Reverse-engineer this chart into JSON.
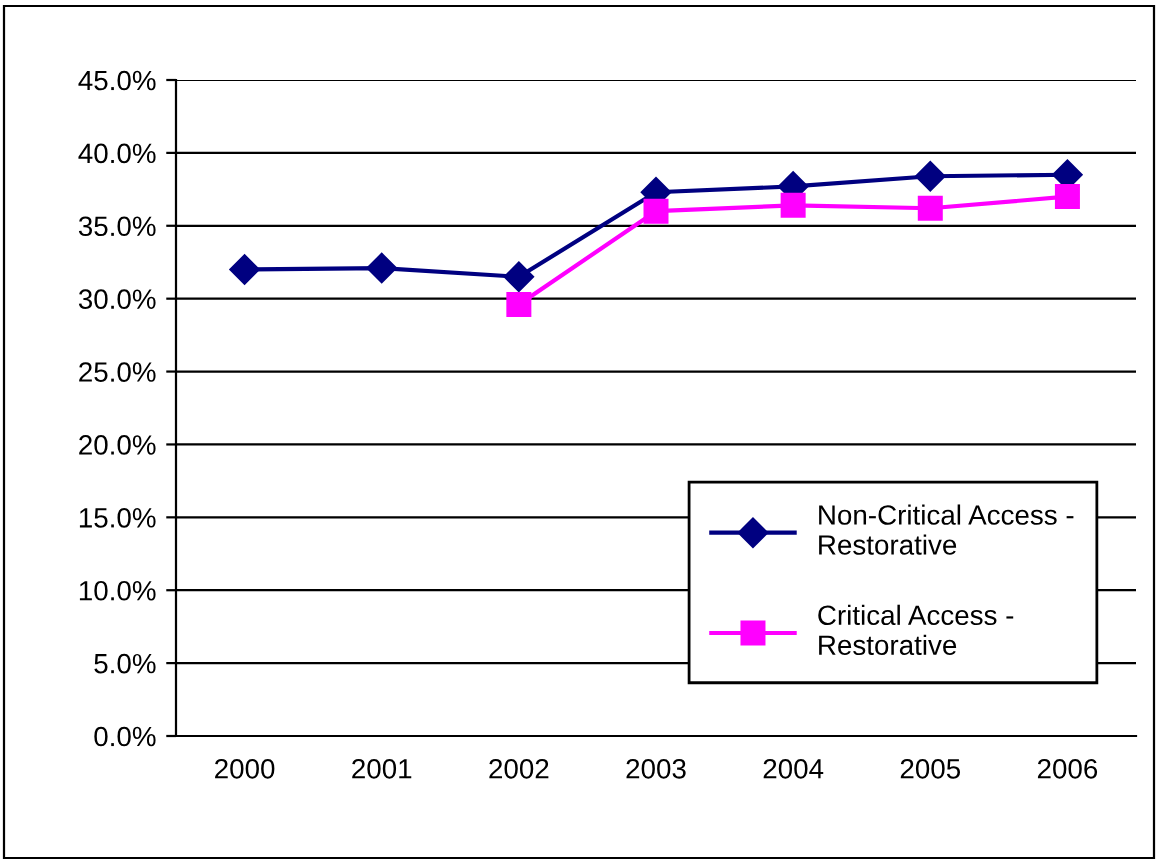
{
  "chart_data": {
    "type": "line",
    "categories": [
      "2000",
      "2001",
      "2002",
      "2003",
      "2004",
      "2005",
      "2006"
    ],
    "series": [
      {
        "name": "Non-Critical Access - Restorative",
        "color": "#000080",
        "marker": "diamond",
        "values": [
          32.0,
          32.1,
          31.5,
          37.3,
          37.7,
          38.4,
          38.5
        ]
      },
      {
        "name": "Critical Access - Restorative",
        "color": "#ff00ff",
        "marker": "square",
        "values": [
          null,
          null,
          29.6,
          36.0,
          36.4,
          36.2,
          37.0
        ]
      }
    ],
    "ylim": [
      0,
      45
    ],
    "yticks": [
      {
        "value": 0,
        "label": "0.0%"
      },
      {
        "value": 5,
        "label": "5.0%"
      },
      {
        "value": 10,
        "label": "10.0%"
      },
      {
        "value": 15,
        "label": "15.0%"
      },
      {
        "value": 20,
        "label": "20.0%"
      },
      {
        "value": 25,
        "label": "25.0%"
      },
      {
        "value": 30,
        "label": "30.0%"
      },
      {
        "value": 35,
        "label": "35.0%"
      },
      {
        "value": 40,
        "label": "40.0%"
      },
      {
        "value": 45,
        "label": "45.0%"
      }
    ],
    "grid": "y",
    "legend": "bottom right",
    "line_style": "solid"
  }
}
